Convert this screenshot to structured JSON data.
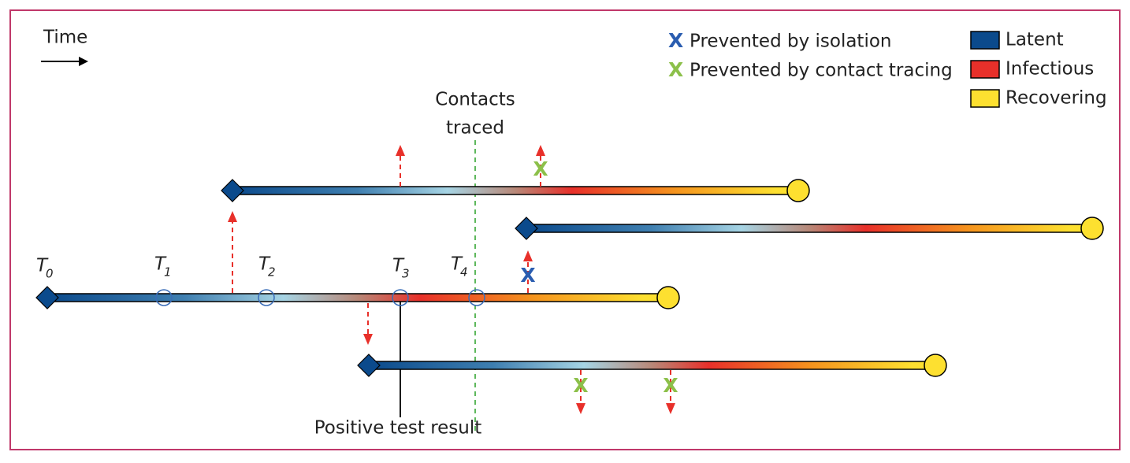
{
  "time_label": "Time",
  "legend": {
    "markers": [
      {
        "symbol": "X",
        "label": "Prevented by isolation"
      },
      {
        "symbol": "X",
        "label": "Prevented by contact tracing"
      }
    ],
    "states": [
      "Latent",
      "Infectious",
      "Recovering"
    ]
  },
  "time_points": [
    {
      "letter": "T",
      "subscript": "0"
    },
    {
      "letter": "T",
      "subscript": "1"
    },
    {
      "letter": "T",
      "subscript": "2"
    },
    {
      "letter": "T",
      "subscript": "3"
    },
    {
      "letter": "T",
      "subscript": "4"
    }
  ],
  "annotations": {
    "contacts_traced": [
      "Contacts",
      "traced"
    ],
    "positive_test": "Positive test result"
  },
  "prevention_marks": [
    "X",
    "X",
    "X",
    "X"
  ]
}
